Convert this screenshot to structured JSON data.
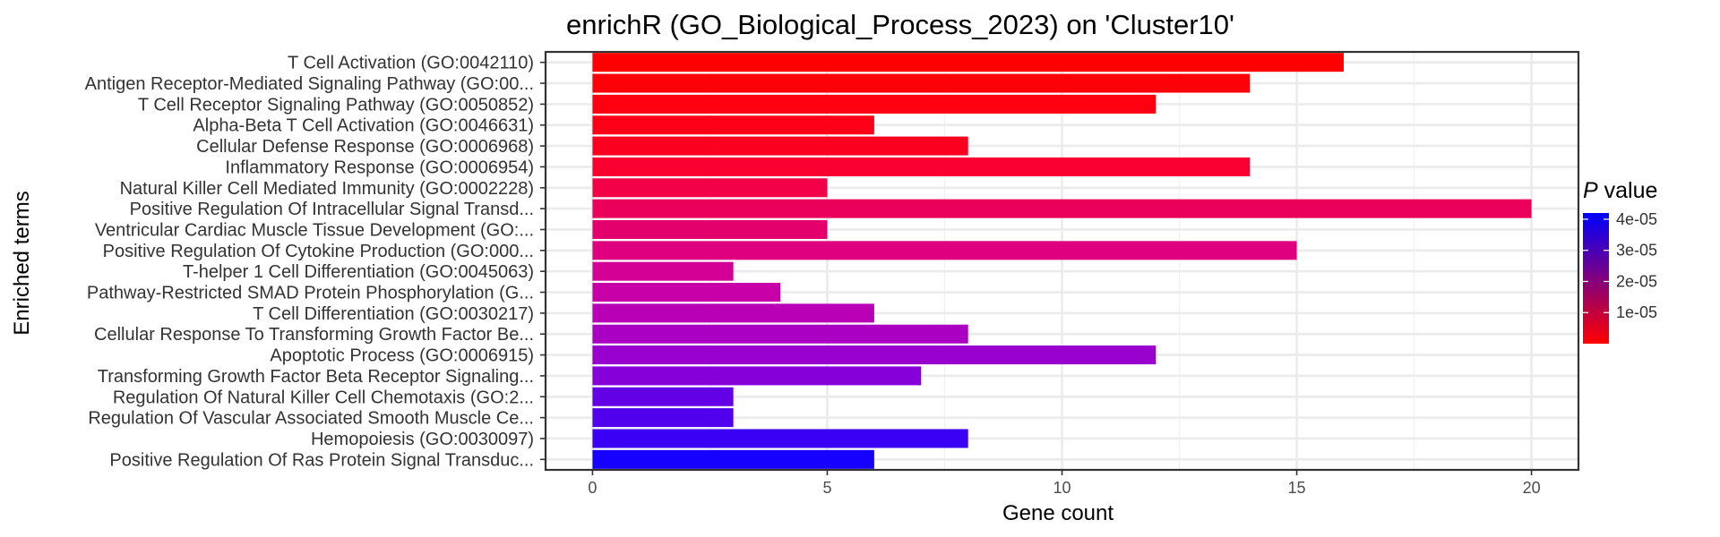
{
  "chart_data": {
    "type": "bar",
    "orientation": "horizontal",
    "title": "enrichR (GO_Biological_Process_2023) on 'Cluster10'",
    "xlabel": "Gene count",
    "ylabel": "Enriched terms",
    "xlim": [
      -1,
      21
    ],
    "xticks": [
      0,
      5,
      10,
      15,
      20
    ],
    "grid": true,
    "categories": [
      "T Cell Activation (GO:0042110)",
      "Antigen Receptor-Mediated Signaling Pathway (GO:00...",
      "T Cell Receptor Signaling Pathway (GO:0050852)",
      "Alpha-Beta T Cell Activation (GO:0046631)",
      "Cellular Defense Response (GO:0006968)",
      "Inflammatory Response (GO:0006954)",
      "Natural Killer Cell Mediated Immunity (GO:0002228)",
      "Positive Regulation Of Intracellular Signal Transd...",
      "Ventricular Cardiac Muscle Tissue Development (GO:...",
      "Positive Regulation Of Cytokine Production (GO:000...",
      "T-helper 1 Cell Differentiation (GO:0045063)",
      "Pathway-Restricted SMAD Protein Phosphorylation (G...",
      "T Cell Differentiation (GO:0030217)",
      "Cellular Response To Transforming Growth Factor Be...",
      "Apoptotic Process (GO:0006915)",
      "Transforming Growth Factor Beta Receptor Signaling...",
      "Regulation Of Natural Killer Cell Chemotaxis (GO:2...",
      "Regulation Of Vascular Associated Smooth Muscle Ce...",
      "Hemopoiesis (GO:0030097)",
      "Positive Regulation Of Ras Protein Signal Transduc..."
    ],
    "values": [
      16,
      14,
      12,
      6,
      8,
      14,
      5,
      20,
      5,
      15,
      3,
      4,
      6,
      8,
      12,
      7,
      3,
      3,
      8,
      6
    ],
    "colors": [
      "#fe0000",
      "#fe0008",
      "#fe0010",
      "#fd0018",
      "#fc0020",
      "#fa0030",
      "#f20048",
      "#ea005a",
      "#e4006c",
      "#de007e",
      "#d40096",
      "#c800a8",
      "#ba00b6",
      "#aa00c2",
      "#9800ce",
      "#8600da",
      "#6400e6",
      "#5000ec",
      "#3a00f4",
      "#1600fe"
    ],
    "color_scale": {
      "title_italic": "P",
      "title_rest": " value",
      "low_color": "#ff0000",
      "high_color": "#0000ff",
      "range": [
        0,
        4.2e-05
      ],
      "ticks": [
        1e-05,
        2e-05,
        3e-05,
        4e-05
      ],
      "tick_labels": [
        "1e-05",
        "2e-05",
        "3e-05",
        "4e-05"
      ]
    }
  }
}
